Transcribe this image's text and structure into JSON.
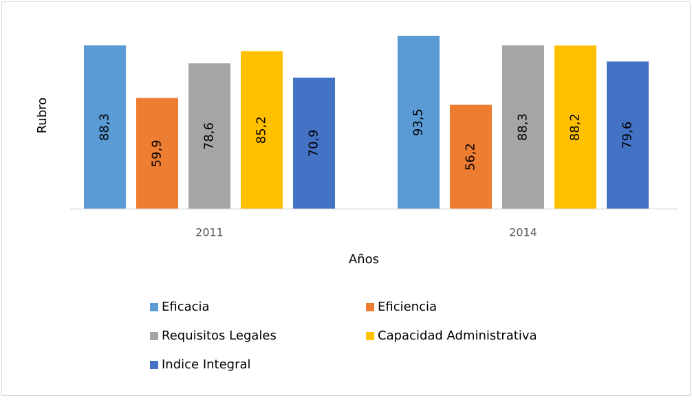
{
  "chart_data": {
    "type": "bar",
    "x_label": "Años",
    "y_label": "Rubro",
    "categories": [
      "2011",
      "2014"
    ],
    "series": [
      {
        "name": "Eficacia",
        "color": "#5b9bd5",
        "values": [
          88.3,
          93.5
        ],
        "value_labels": [
          "88,3",
          "93,5"
        ]
      },
      {
        "name": "Eficiencia",
        "color": "#ed7d31",
        "values": [
          59.9,
          56.2
        ],
        "value_labels": [
          "59,9",
          "56,2"
        ]
      },
      {
        "name": "Requisitos Legales",
        "color": "#a5a5a5",
        "values": [
          78.6,
          88.3
        ],
        "value_labels": [
          "78,6",
          "88,3"
        ]
      },
      {
        "name": "Capacidad Administrativa",
        "color": "#ffc000",
        "values": [
          85.2,
          88.2
        ],
        "value_labels": [
          "85,2",
          "88,2"
        ]
      },
      {
        "name": "Indice Integral",
        "color": "#4472c4",
        "values": [
          70.9,
          79.6
        ],
        "value_labels": [
          "70,9",
          "79,6"
        ]
      }
    ],
    "ylim": [
      0,
      100
    ]
  }
}
